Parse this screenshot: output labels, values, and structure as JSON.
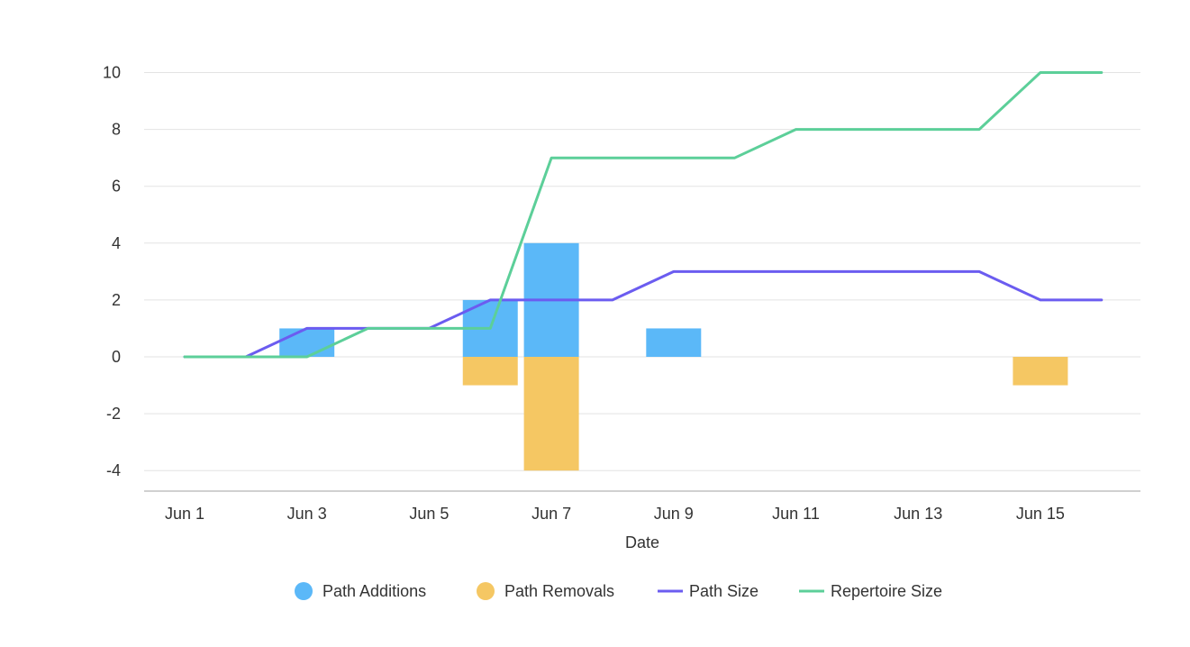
{
  "chart_data": {
    "type": "bar",
    "title": "",
    "xlabel": "Date",
    "ylabel": "",
    "ylim": [
      -4,
      10
    ],
    "yticks": [
      -4,
      -2,
      0,
      2,
      4,
      6,
      8,
      10
    ],
    "categories": [
      "Jun 1",
      "Jun 2",
      "Jun 3",
      "Jun 4",
      "Jun 5",
      "Jun 6",
      "Jun 7",
      "Jun 8",
      "Jun 9",
      "Jun 10",
      "Jun 11",
      "Jun 12",
      "Jun 13",
      "Jun 14",
      "Jun 15",
      "Jun 16"
    ],
    "xtick_labels": [
      "Jun 1",
      "Jun 3",
      "Jun 5",
      "Jun 7",
      "Jun 9",
      "Jun 11",
      "Jun 13",
      "Jun 15"
    ],
    "series": [
      {
        "name": "Path Additions",
        "kind": "bar",
        "color": "#5bb8f8",
        "values": [
          0,
          0,
          1,
          0,
          0,
          2,
          4,
          0,
          1,
          0,
          0,
          0,
          0,
          0,
          0,
          0
        ]
      },
      {
        "name": "Path Removals",
        "kind": "bar",
        "color": "#f5c763",
        "values": [
          0,
          0,
          0,
          0,
          0,
          -1,
          -4,
          0,
          0,
          0,
          0,
          0,
          0,
          0,
          -1,
          0
        ]
      },
      {
        "name": "Path Size",
        "kind": "line",
        "color": "#6b5cf0",
        "values": [
          0,
          0,
          1,
          1,
          1,
          2,
          2,
          2,
          3,
          3,
          3,
          3,
          3,
          3,
          2,
          2
        ]
      },
      {
        "name": "Repertoire Size",
        "kind": "line",
        "color": "#5ccf99",
        "values": [
          0,
          0,
          0,
          1,
          1,
          1,
          7,
          7,
          7,
          7,
          8,
          8,
          8,
          8,
          10,
          10
        ]
      }
    ],
    "legend_position": "bottom"
  }
}
